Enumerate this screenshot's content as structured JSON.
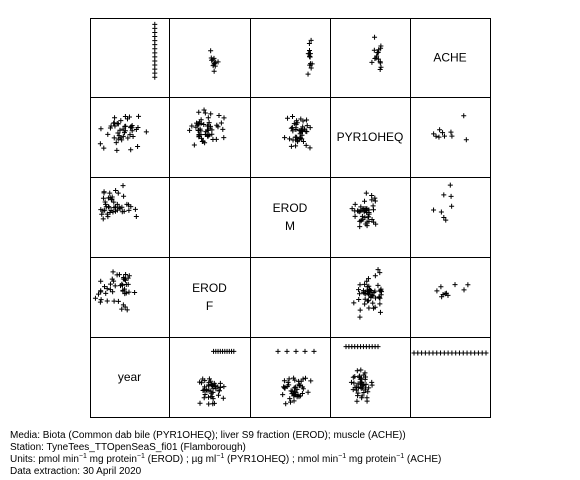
{
  "chart_data": {
    "type": "scatter-matrix",
    "variables": [
      "year",
      "EROD F",
      "EROD M",
      "PYR1OHEQ",
      "ACHE"
    ],
    "diagonal_labels": [
      {
        "panel": 0,
        "lines": [
          "year"
        ]
      },
      {
        "panel": 1,
        "lines": [
          "EROD",
          "F"
        ]
      },
      {
        "panel": 2,
        "lines": [
          "EROD",
          "M"
        ]
      },
      {
        "panel": 3,
        "lines": [
          "PYR1OHEQ"
        ]
      },
      {
        "panel": 4,
        "lines": [
          "ACHE"
        ]
      }
    ],
    "marker": "+",
    "grid": false,
    "axes_ticks": false
  },
  "caption": {
    "media": "Media: Biota (Common dab bile (PYR1OHEQ); liver S9 fraction (EROD); muscle (ACHE))",
    "station": "Station: TyneTees_TTOpenSeaS_fi01 (Flamborough)",
    "units_parts": [
      "Units:  pmol min",
      "−1",
      " mg protein",
      "−1",
      " (EROD) ;  µg ml",
      "−1",
      " (PYR1OHEQ) ;  nmol min",
      "−1",
      " mg protein",
      "−1",
      " (ACHE)"
    ],
    "extraction": "Data extraction: 30 April 2020"
  }
}
